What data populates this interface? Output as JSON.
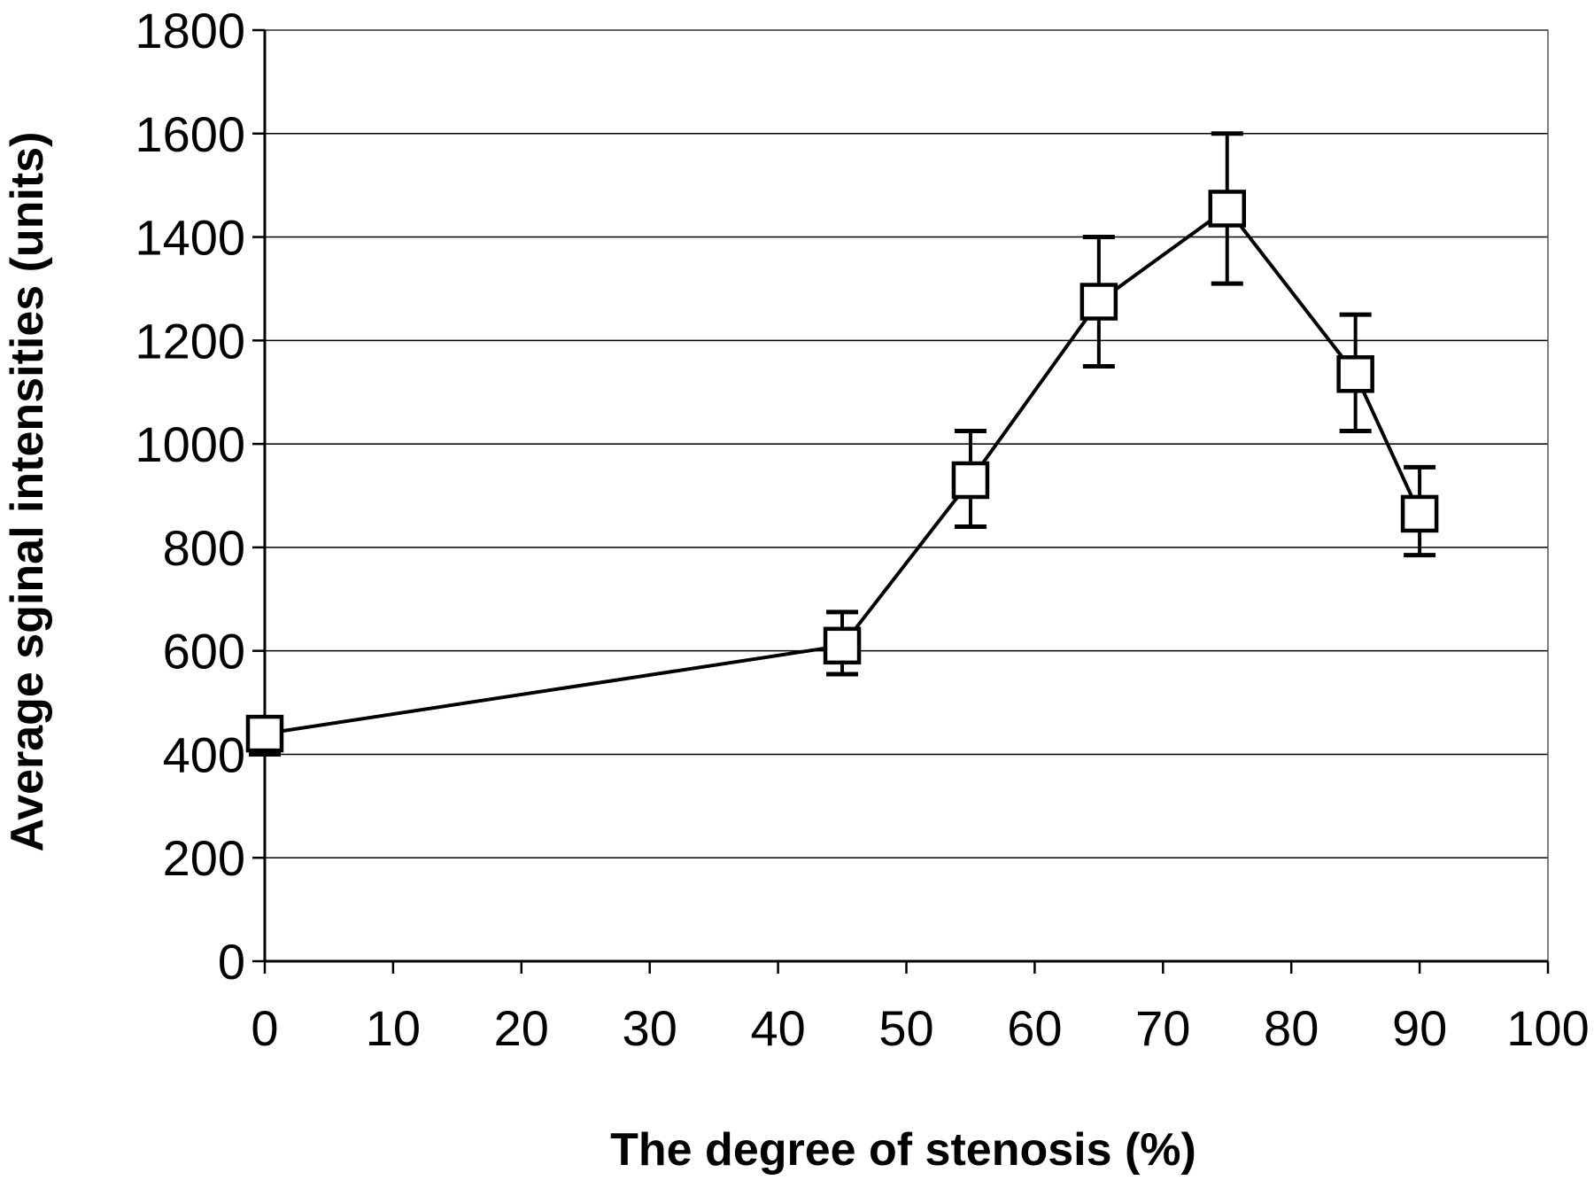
{
  "chart_data": {
    "type": "line",
    "xlabel": "The degree of stenosis (%)",
    "ylabel": "Average sginal intensities (units)",
    "xlim": [
      0,
      100
    ],
    "ylim": [
      0,
      1800
    ],
    "x_ticks": [
      "0",
      "10",
      "20",
      "30",
      "40",
      "50",
      "60",
      "70",
      "80",
      "90",
      "100"
    ],
    "y_ticks": [
      "0",
      "200",
      "400",
      "600",
      "800",
      "1000",
      "1200",
      "1400",
      "1600",
      "1800"
    ],
    "grid": "horizontal",
    "series": [
      {
        "marker": "open-square",
        "color": "#000000",
        "points": [
          {
            "x": 0,
            "y": 440,
            "err_low": 400,
            "err_high": 470
          },
          {
            "x": 45,
            "y": 610,
            "err_low": 555,
            "err_high": 675
          },
          {
            "x": 55,
            "y": 930,
            "err_low": 840,
            "err_high": 1025
          },
          {
            "x": 65,
            "y": 1275,
            "err_low": 1150,
            "err_high": 1400
          },
          {
            "x": 75,
            "y": 1455,
            "err_low": 1310,
            "err_high": 1600
          },
          {
            "x": 85,
            "y": 1135,
            "err_low": 1025,
            "err_high": 1250
          },
          {
            "x": 90,
            "y": 865,
            "err_low": 785,
            "err_high": 955
          }
        ]
      }
    ]
  }
}
